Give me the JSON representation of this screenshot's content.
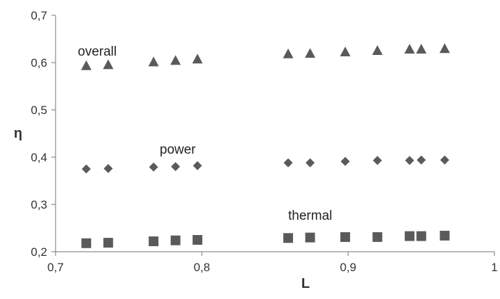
{
  "chart_data": {
    "type": "scatter",
    "title": "",
    "xlabel": "L",
    "ylabel": "η",
    "xlim": [
      0.7,
      1.0
    ],
    "ylim": [
      0.2,
      0.7
    ],
    "grid": false,
    "legend": "none",
    "x_ticks": [
      "0,7",
      "0,8",
      "0,9",
      "1"
    ],
    "y_ticks": [
      "0,2",
      "0,3",
      "0,4",
      "0,5",
      "0,6",
      "0,7"
    ],
    "marker_color": "#5a5a5a",
    "series": [
      {
        "name": "overall",
        "marker": "triangle",
        "x": [
          0.721,
          0.736,
          0.767,
          0.782,
          0.797,
          0.859,
          0.874,
          0.898,
          0.92,
          0.942,
          0.95,
          0.966
        ],
        "y": [
          0.592,
          0.594,
          0.6,
          0.603,
          0.606,
          0.617,
          0.618,
          0.621,
          0.624,
          0.627,
          0.627,
          0.628
        ]
      },
      {
        "name": "power",
        "marker": "diamond",
        "x": [
          0.721,
          0.736,
          0.767,
          0.782,
          0.797,
          0.859,
          0.874,
          0.898,
          0.92,
          0.942,
          0.95,
          0.966
        ],
        "y": [
          0.375,
          0.376,
          0.379,
          0.38,
          0.382,
          0.388,
          0.388,
          0.391,
          0.393,
          0.393,
          0.394,
          0.394
        ]
      },
      {
        "name": "thermal",
        "marker": "square",
        "x": [
          0.721,
          0.736,
          0.767,
          0.782,
          0.797,
          0.859,
          0.874,
          0.898,
          0.92,
          0.942,
          0.95,
          0.966
        ],
        "y": [
          0.218,
          0.219,
          0.222,
          0.224,
          0.225,
          0.229,
          0.23,
          0.231,
          0.231,
          0.233,
          0.233,
          0.234
        ]
      }
    ]
  }
}
